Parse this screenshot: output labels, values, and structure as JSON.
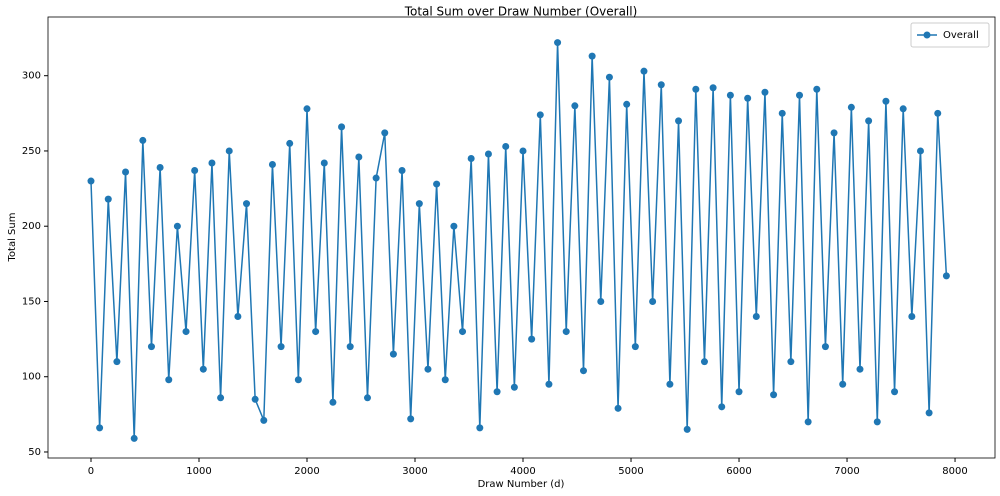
{
  "chart_data": {
    "type": "line",
    "title": "Total Sum over Draw Number (Overall)",
    "x_label": "Draw Number (d)",
    "y_label": "Total Sum",
    "x": [
      0,
      80,
      160,
      240,
      320,
      400,
      480,
      560,
      640,
      720,
      800,
      880,
      960,
      1040,
      1120,
      1200,
      1280,
      1360,
      1440,
      1520,
      1600,
      1680,
      1760,
      1840,
      1920,
      2000,
      2080,
      2160,
      2240,
      2320,
      2400,
      2480,
      2560,
      2640,
      2720,
      2800,
      2880,
      2960,
      3040,
      3120,
      3200,
      3280,
      3360,
      3440,
      3520,
      3600,
      3680,
      3760,
      3840,
      3920,
      4000,
      4080,
      4160,
      4240,
      4320,
      4400,
      4480,
      4560,
      4640,
      4720,
      4800,
      4880,
      4960,
      5040,
      5120,
      5200,
      5280,
      5360,
      5440,
      5520,
      5600,
      5680,
      5760,
      5840,
      5920,
      6000,
      6080,
      6160,
      6240,
      6320,
      6400,
      6480,
      6560,
      6640,
      6720,
      6800,
      6880,
      6960,
      7040,
      7120,
      7200,
      7280,
      7360,
      7440,
      7520,
      7600,
      7680,
      7760,
      7840,
      7920
    ],
    "series": [
      {
        "name": "Overall",
        "color": "#1f77b4",
        "values": [
          230,
          66,
          218,
          110,
          236,
          59,
          257,
          120,
          239,
          98,
          200,
          130,
          237,
          105,
          242,
          86,
          250,
          140,
          215,
          85,
          71,
          241,
          120,
          255,
          98,
          278,
          130,
          242,
          83,
          266,
          120,
          246,
          86,
          232,
          262,
          115,
          237,
          72,
          215,
          105,
          228,
          98,
          200,
          130,
          245,
          66,
          248,
          90,
          253,
          93,
          250,
          125,
          274,
          95,
          322,
          130,
          280,
          104,
          313,
          150,
          299,
          79,
          281,
          120,
          303,
          150,
          294,
          95,
          270,
          65,
          291,
          110,
          292,
          80,
          287,
          90,
          285,
          140,
          289,
          88,
          275,
          110,
          287,
          70,
          291,
          120,
          262,
          95,
          279,
          105,
          270,
          70,
          283,
          90,
          278,
          140,
          250,
          76,
          275,
          167
        ]
      }
    ],
    "xlim": [
      -398,
      8370
    ],
    "ylim": [
      46,
      339
    ],
    "xticks": [
      0,
      1000,
      2000,
      3000,
      4000,
      5000,
      6000,
      7000,
      8000
    ],
    "yticks": [
      50,
      100,
      150,
      200,
      250,
      300
    ],
    "grid": false,
    "legend": "upper right",
    "marker": "circle"
  }
}
